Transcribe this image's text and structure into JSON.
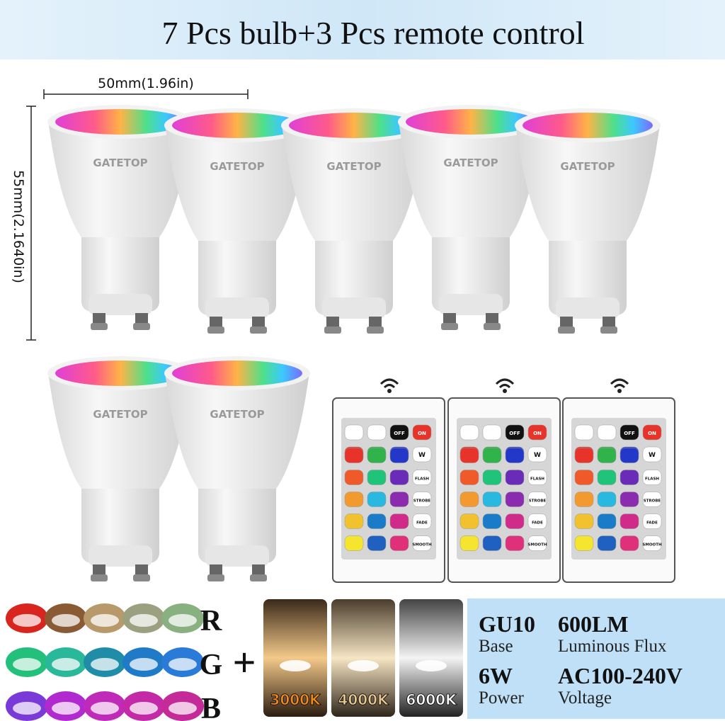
{
  "header": {
    "title": "7 Pcs bulb+3 Pcs remote control"
  },
  "dimensions": {
    "width": "50mm(1.96in)",
    "height": "55mm(2.1640in)"
  },
  "bulbs": [
    {
      "brand": "GATETOP"
    },
    {
      "brand": "GATETOP"
    },
    {
      "brand": "GATETOP"
    },
    {
      "brand": "GATETOP"
    },
    {
      "brand": "GATETOP"
    },
    {
      "brand": "GATETOP"
    },
    {
      "brand": "GATETOP"
    }
  ],
  "remotes": [
    {
      "buttons": [
        "OFF",
        "ON",
        "R",
        "G",
        "B",
        "W",
        "FLASH",
        "STROBE",
        "FADE",
        "SMOOTH"
      ]
    },
    {
      "buttons": [
        "OFF",
        "ON",
        "R",
        "G",
        "B",
        "W",
        "FLASH",
        "STROBE",
        "FADE",
        "SMOOTH"
      ]
    },
    {
      "buttons": [
        "OFF",
        "ON",
        "R",
        "G",
        "B",
        "W",
        "FLASH",
        "STROBE",
        "FADE",
        "SMOOTH"
      ]
    }
  ],
  "color_rows": {
    "labels": [
      "R",
      "G",
      "B"
    ],
    "plus": "+"
  },
  "color_temperatures": [
    "3000K",
    "4000K",
    "6000K"
  ],
  "specs": [
    {
      "value": "GU10",
      "label": "Base"
    },
    {
      "value": "600LM",
      "label": "Luminous Flux"
    },
    {
      "value": "6W",
      "label": "Power"
    },
    {
      "value": "AC100-240V",
      "label": "Voltage"
    }
  ]
}
